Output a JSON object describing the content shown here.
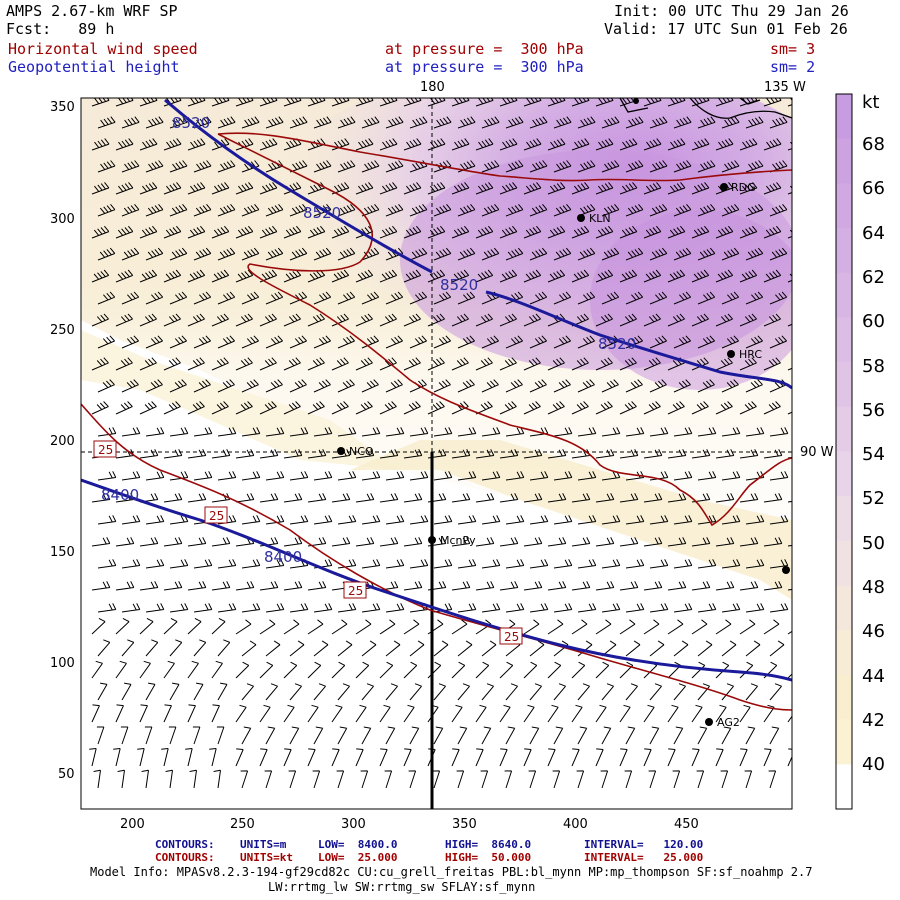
{
  "header": {
    "model": "AMPS 2.67-km WRF SP",
    "init": "Init: 00 UTC Thu 29 Jan 26",
    "fcst": "Fcst:   89 h",
    "valid": "Valid: 17 UTC Sun 01 Feb 26",
    "field1_name": "Horizontal wind speed",
    "field1_level": "at pressure =  300 hPa",
    "field1_sm": "sm= 3",
    "field2_name": "Geopotential height",
    "field2_level": "at pressure =  300 hPa",
    "field2_sm": "sm= 2"
  },
  "map": {
    "x_ticks": [
      "200",
      "250",
      "300",
      "350",
      "400",
      "450"
    ],
    "y_ticks": [
      "350",
      "300",
      "250",
      "200",
      "150",
      "100",
      "50"
    ],
    "meridian_180": "180",
    "meridian_135w": "135 W",
    "meridian_90w": "90 W",
    "stations": [
      "RDG",
      "KLN",
      "HRC",
      "NCO",
      "McnPy",
      "AG2"
    ],
    "height_contour_labels": [
      "8520",
      "8520",
      "8520",
      "8520",
      "8400",
      "8400"
    ],
    "wind_contour_labels": [
      "25",
      "25",
      "25",
      "25"
    ]
  },
  "colorbar": {
    "unit": "kt",
    "labels": [
      "68",
      "66",
      "64",
      "62",
      "60",
      "58",
      "56",
      "54",
      "52",
      "50",
      "48",
      "46",
      "44",
      "42",
      "40"
    ],
    "colors": [
      "#c89ce0",
      "#cca2e1",
      "#d0a8e2",
      "#d4afe3",
      "#d8b6e4",
      "#dcbde5",
      "#e0c4e6",
      "#e4cce7",
      "#e8d4e8",
      "#ecdce6",
      "#f0e2e2",
      "#f4e8dc",
      "#f7ecd6",
      "#f9efd0",
      "#fbf2d4",
      "#ffffff"
    ]
  },
  "footer": {
    "line1_label": "CONTOURS:",
    "line1_units": "UNITS=m",
    "line1_low": "LOW=  8400.0",
    "line1_high": "HIGH=  8640.0",
    "line1_interval": "INTERVAL=   120.00",
    "line2_label": "CONTOURS:",
    "line2_units": "UNITS=kt",
    "line2_low": "LOW=  25.000",
    "line2_high": "HIGH=  50.000",
    "line2_interval": "INTERVAL=   25.000",
    "model_info": "Model Info: MPASv8.2.3-194-gf29cd82c CU:cu_grell_freitas PBL:bl_mynn MP:mp_thompson SF:sf_noahmp 2.7",
    "model_info2": "LW:rrtmg_lw SW:rrtmg_sw SFLAY:sf_mynn"
  }
}
